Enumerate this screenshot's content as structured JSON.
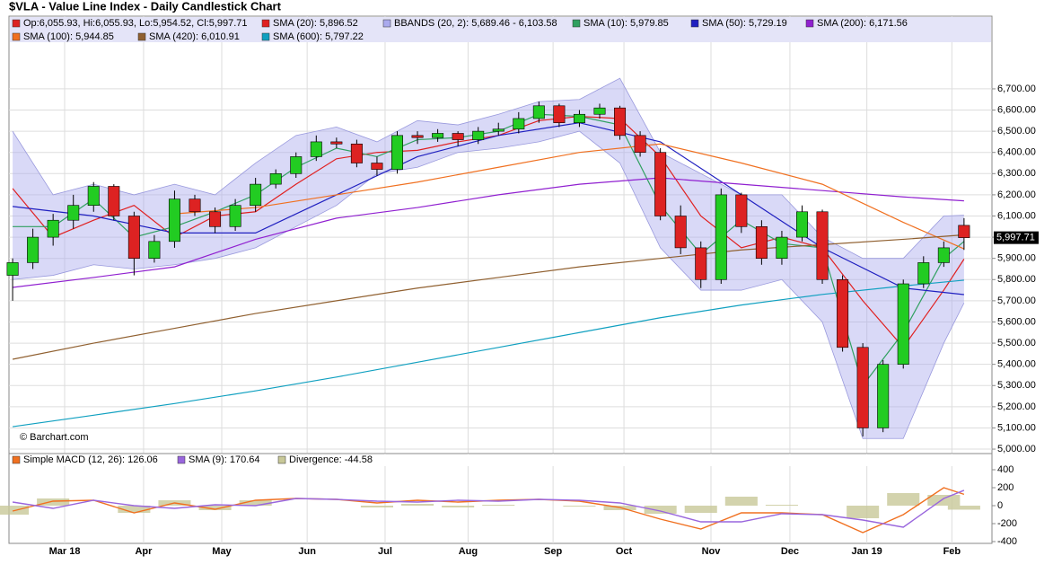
{
  "chart_data": [
    {
      "type": "candlestick",
      "title": "$VLA - Value Line Index - Daily Candlestick Chart",
      "watermark": "© Barchart.com",
      "ohlc_label": "Op:6,055.93, Hi:6,055.93, Lo:5,954.52, Cl:5,997.71",
      "price_tag": "5,997.71",
      "up_color": "#22cc22",
      "down_color": "#dd2222",
      "xlim": [
        -0.18,
        48.38
      ],
      "xticks": [
        {
          "value": 2.57,
          "label": "Mar 18"
        },
        {
          "value": 6.47,
          "label": "Apr"
        },
        {
          "value": 10.33,
          "label": "May"
        },
        {
          "value": 14.55,
          "label": "Jun"
        },
        {
          "value": 18.4,
          "label": "Jul"
        },
        {
          "value": 22.5,
          "label": "Aug"
        },
        {
          "value": 26.7,
          "label": "Sep"
        },
        {
          "value": 30.2,
          "label": "Oct"
        },
        {
          "value": 34.5,
          "label": "Nov"
        },
        {
          "value": 38.4,
          "label": "Dec"
        },
        {
          "value": 42.2,
          "label": "Jan 19"
        },
        {
          "value": 46.4,
          "label": "Feb"
        }
      ],
      "ylim": [
        4979,
        7043
      ],
      "yticks": [
        {
          "value": 5000,
          "label": "5,000.00"
        },
        {
          "value": 5100,
          "label": "5,100.00"
        },
        {
          "value": 5200,
          "label": "5,200.00"
        },
        {
          "value": 5300,
          "label": "5,300.00"
        },
        {
          "value": 5400,
          "label": "5,400.00"
        },
        {
          "value": 5500,
          "label": "5,500.00"
        },
        {
          "value": 5600,
          "label": "5,600.00"
        },
        {
          "value": 5700,
          "label": "5,700.00"
        },
        {
          "value": 5800,
          "label": "5,800.00"
        },
        {
          "value": 5900,
          "label": "5,900.00"
        },
        {
          "value": 6000,
          "label": "6,000.00"
        },
        {
          "value": 6100,
          "label": "6,100.00"
        },
        {
          "value": 6200,
          "label": "6,200.00"
        },
        {
          "value": 6300,
          "label": "6,300.00"
        },
        {
          "value": 6400,
          "label": "6,400.00"
        },
        {
          "value": 6500,
          "label": "6,500.00"
        },
        {
          "value": 6600,
          "label": "6,600.00"
        },
        {
          "value": 6700,
          "label": "6,700.00"
        }
      ],
      "grid": true,
      "open": [
        5820,
        5880,
        6000,
        6080,
        6150,
        6240,
        6100,
        5900,
        5980,
        6180,
        6120,
        6050,
        6150,
        6250,
        6300,
        6380,
        6450,
        6440,
        6350,
        6320,
        6480,
        6470,
        6490,
        6460,
        6500,
        6510,
        6560,
        6620,
        6540,
        6580,
        6610,
        6480,
        6400,
        6100,
        5950,
        5800,
        6200,
        6050,
        5900,
        6000,
        6120,
        5800,
        5480,
        5100,
        5400,
        5780,
        5880,
        6055.93
      ],
      "high": [
        5900,
        6040,
        6110,
        6200,
        6260,
        6250,
        6120,
        6010,
        6220,
        6200,
        6140,
        6180,
        6280,
        6320,
        6400,
        6480,
        6470,
        6460,
        6380,
        6500,
        6500,
        6510,
        6500,
        6520,
        6540,
        6590,
        6640,
        6630,
        6600,
        6630,
        6620,
        6500,
        6420,
        6150,
        5980,
        6230,
        6210,
        6080,
        6030,
        6150,
        6130,
        5820,
        5500,
        5420,
        5800,
        5910,
        5980,
        6090
      ],
      "low": [
        5700,
        5850,
        5960,
        6040,
        6120,
        6080,
        5820,
        5880,
        5950,
        6100,
        6020,
        6030,
        6120,
        6230,
        6280,
        6360,
        6420,
        6330,
        6290,
        6300,
        6440,
        6450,
        6430,
        6440,
        6480,
        6490,
        6540,
        6520,
        6520,
        6560,
        6460,
        6380,
        6080,
        5920,
        5760,
        5780,
        6020,
        5870,
        5870,
        5980,
        5780,
        5460,
        5060,
        5080,
        5380,
        5760,
        5860,
        5940
      ],
      "close": [
        5880,
        6000,
        6080,
        6150,
        6240,
        6100,
        5900,
        5980,
        6180,
        6120,
        6050,
        6150,
        6250,
        6300,
        6380,
        6450,
        6440,
        6350,
        6320,
        6480,
        6470,
        6490,
        6460,
        6500,
        6510,
        6560,
        6620,
        6540,
        6580,
        6610,
        6480,
        6400,
        6100,
        5950,
        5800,
        6200,
        6050,
        5900,
        6000,
        6120,
        5800,
        5480,
        5100,
        5400,
        5780,
        5880,
        5950,
        5997.71
      ],
      "bands": {
        "name": "BBANDS (20, 2): 5,689.46 - 6,103.58",
        "color": "#aaaaee",
        "x": [
          0,
          2,
          4,
          6,
          8,
          10,
          12,
          14,
          16,
          18,
          20,
          22,
          24,
          26,
          28,
          30,
          32,
          34,
          36,
          38,
          40,
          42,
          44,
          46,
          47
        ],
        "upper": [
          6500,
          6200,
          6250,
          6200,
          6250,
          6200,
          6350,
          6480,
          6520,
          6450,
          6550,
          6530,
          6580,
          6640,
          6650,
          6750,
          6400,
          6300,
          6200,
          6200,
          6000,
          5900,
          5900,
          6100,
          6103.58
        ],
        "lower": [
          5800,
          5820,
          5870,
          5850,
          5870,
          5900,
          5950,
          6050,
          6150,
          6300,
          6330,
          6400,
          6420,
          6450,
          6500,
          6350,
          5950,
          5750,
          5750,
          5800,
          5600,
          5050,
          5050,
          5500,
          5689.46
        ]
      },
      "series": [
        {
          "name": "SMA (20): 5,896.52",
          "color": "#e02020",
          "x": [
            0,
            2,
            4,
            6,
            8,
            10,
            12,
            14,
            16,
            18,
            20,
            22,
            24,
            26,
            28,
            30,
            32,
            34,
            36,
            38,
            40,
            42,
            44,
            46,
            47
          ],
          "values": [
            6230,
            6000,
            6080,
            6150,
            6000,
            6100,
            6120,
            6250,
            6370,
            6400,
            6410,
            6450,
            6480,
            6550,
            6570,
            6560,
            6380,
            6100,
            5950,
            6000,
            5950,
            5700,
            5480,
            5750,
            5896.52
          ]
        },
        {
          "name": "SMA (10): 5,979.85",
          "color": "#30a060",
          "x": [
            0,
            2,
            4,
            6,
            8,
            10,
            12,
            14,
            16,
            18,
            20,
            22,
            24,
            26,
            28,
            30,
            32,
            34,
            36,
            38,
            40,
            42,
            44,
            46,
            47
          ],
          "values": [
            6050,
            6050,
            6180,
            6000,
            6050,
            6120,
            6200,
            6330,
            6420,
            6380,
            6460,
            6470,
            6500,
            6580,
            6570,
            6530,
            6150,
            5920,
            6080,
            5970,
            5950,
            5300,
            5550,
            5900,
            5979.85
          ]
        },
        {
          "name": "SMA (50): 5,729.19",
          "color": "#2020c0",
          "x": [
            0,
            4,
            8,
            12,
            16,
            20,
            24,
            28,
            32,
            36,
            40,
            44,
            47
          ],
          "values": [
            6145,
            6100,
            6020,
            6020,
            6200,
            6380,
            6480,
            6540,
            6450,
            6200,
            5950,
            5760,
            5729.19
          ]
        },
        {
          "name": "SMA (200): 6,171.56",
          "color": "#9020d0",
          "x": [
            0,
            4,
            8,
            12,
            16,
            20,
            24,
            28,
            32,
            36,
            40,
            44,
            47
          ],
          "values": [
            5763,
            5810,
            5860,
            5990,
            6090,
            6140,
            6200,
            6250,
            6280,
            6250,
            6220,
            6190,
            6171.56
          ]
        },
        {
          "name": "SMA (100): 5,944.85",
          "color": "#f07020",
          "x": [
            8,
            12,
            16,
            20,
            24,
            28,
            32,
            36,
            40,
            44,
            47
          ],
          "values": [
            6110,
            6140,
            6200,
            6260,
            6330,
            6400,
            6440,
            6350,
            6250,
            6070,
            5944.85
          ]
        },
        {
          "name": "SMA (420): 6,010.91",
          "color": "#906030",
          "x": [
            0,
            4,
            8,
            12,
            16,
            20,
            24,
            28,
            32,
            36,
            40,
            44,
            47
          ],
          "values": [
            5424,
            5500,
            5570,
            5640,
            5700,
            5760,
            5810,
            5860,
            5900,
            5940,
            5965,
            5990,
            6010.91
          ]
        },
        {
          "name": "SMA (600): 5,797.22",
          "color": "#10a0c0",
          "x": [
            0,
            4,
            8,
            12,
            16,
            20,
            24,
            28,
            32,
            36,
            40,
            44,
            47
          ],
          "values": [
            5106,
            5160,
            5215,
            5275,
            5340,
            5410,
            5480,
            5550,
            5620,
            5680,
            5730,
            5770,
            5797.22
          ]
        }
      ]
    },
    {
      "type": "macd",
      "ylim": [
        -420,
        580
      ],
      "yticks": [
        400,
        200,
        0,
        -200,
        -400
      ],
      "x": [
        0,
        2,
        4,
        6,
        8,
        10,
        12,
        14,
        16,
        18,
        20,
        22,
        24,
        26,
        28,
        30,
        32,
        34,
        36,
        38,
        40,
        42,
        44,
        46,
        47
      ],
      "series": [
        {
          "name": "Simple MACD (12, 26): 126.06",
          "color": "#f07020",
          "kind": "line",
          "values": [
            -60,
            50,
            60,
            -80,
            30,
            -40,
            60,
            80,
            70,
            30,
            60,
            40,
            60,
            70,
            50,
            -20,
            -150,
            -260,
            -80,
            -80,
            -100,
            -300,
            -100,
            200,
            126.06
          ]
        },
        {
          "name": "SMA (9): 170.64",
          "color": "#9966dd",
          "kind": "line",
          "values": [
            40,
            -30,
            60,
            0,
            -30,
            10,
            0,
            80,
            70,
            50,
            40,
            60,
            50,
            70,
            60,
            30,
            -60,
            -180,
            -180,
            -90,
            -100,
            -160,
            -240,
            80,
            170.64
          ]
        },
        {
          "name": "Divergence: -44.58",
          "color": "#c8c898",
          "kind": "bar",
          "values": [
            -100,
            80,
            0,
            -80,
            60,
            -50,
            60,
            0,
            0,
            -20,
            20,
            -20,
            10,
            0,
            -10,
            -50,
            -90,
            -80,
            100,
            10,
            0,
            -140,
            140,
            120,
            -44.58
          ]
        }
      ]
    }
  ]
}
